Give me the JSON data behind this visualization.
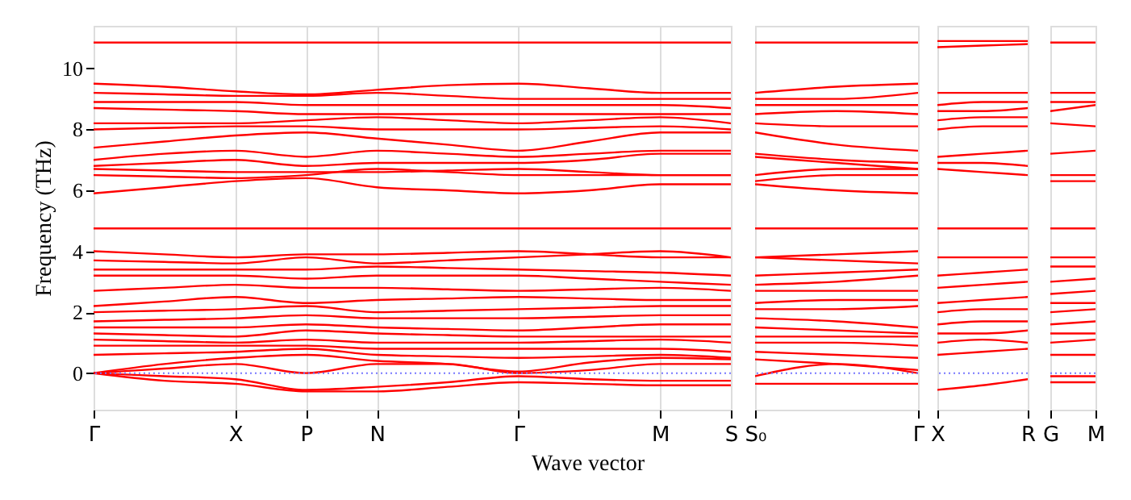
{
  "chart_data": [
    {
      "type": "line",
      "xlabel": "Wave vector",
      "ylabel": "Frequency (THz)",
      "categories": [
        "Γ",
        null,
        "X",
        "P",
        "N",
        null,
        "Γ",
        null,
        "M",
        "S"
      ],
      "ylim": [
        -1.2,
        11.4
      ],
      "yticks": [
        0,
        2,
        4,
        6,
        8,
        10
      ],
      "grid": "x",
      "line_style": "solid",
      "marker": "none",
      "legend": false,
      "ref_lines": [
        {
          "axis": "y",
          "value": 0,
          "color": "#7777ff",
          "line_style": "dotted"
        }
      ],
      "series": [
        {
          "color": "#ff0000",
          "values": [
            10.85,
            10.85,
            10.85,
            10.85,
            10.85,
            10.85,
            10.85,
            10.85,
            10.85,
            10.85
          ]
        },
        {
          "color": "#ff0000",
          "values": [
            9.5,
            9.4,
            9.25,
            9.15,
            9.3,
            9.45,
            9.5,
            9.35,
            9.2,
            9.2
          ]
        },
        {
          "color": "#ff0000",
          "values": [
            9.2,
            9.15,
            9.1,
            9.1,
            9.2,
            9.1,
            9.0,
            9.0,
            9.0,
            9.0
          ]
        },
        {
          "color": "#ff0000",
          "values": [
            8.9,
            8.9,
            8.9,
            8.8,
            8.8,
            8.8,
            8.8,
            8.8,
            8.8,
            8.7
          ]
        },
        {
          "color": "#ff0000",
          "values": [
            8.7,
            8.65,
            8.6,
            8.5,
            8.5,
            8.5,
            8.5,
            8.5,
            8.5,
            8.5
          ]
        },
        {
          "color": "#ff0000",
          "values": [
            8.2,
            8.2,
            8.2,
            8.3,
            8.4,
            8.3,
            8.2,
            8.3,
            8.4,
            8.2
          ]
        },
        {
          "color": "#ff0000",
          "values": [
            8.0,
            8.05,
            8.1,
            8.1,
            8.0,
            8.0,
            8.0,
            8.05,
            8.1,
            8.0
          ]
        },
        {
          "color": "#ff0000",
          "values": [
            7.4,
            7.6,
            7.8,
            7.9,
            7.7,
            7.5,
            7.3,
            7.6,
            7.9,
            7.9
          ]
        },
        {
          "color": "#ff0000",
          "values": [
            7.0,
            7.2,
            7.3,
            7.1,
            7.3,
            7.2,
            7.1,
            7.2,
            7.3,
            7.3
          ]
        },
        {
          "color": "#ff0000",
          "values": [
            6.8,
            6.9,
            7.0,
            6.8,
            6.9,
            6.9,
            6.9,
            7.0,
            7.2,
            7.2
          ]
        },
        {
          "color": "#ff0000",
          "values": [
            6.7,
            6.65,
            6.6,
            6.6,
            6.6,
            6.65,
            6.7,
            6.6,
            6.5,
            6.5
          ]
        },
        {
          "color": "#ff0000",
          "values": [
            6.5,
            6.45,
            6.4,
            6.5,
            6.7,
            6.6,
            6.5,
            6.5,
            6.5,
            6.5
          ]
        },
        {
          "color": "#ff0000",
          "values": [
            5.9,
            6.1,
            6.3,
            6.4,
            6.1,
            6.0,
            5.9,
            6.0,
            6.2,
            6.2
          ]
        },
        {
          "color": "#ff0000",
          "values": [
            4.75,
            4.75,
            4.75,
            4.75,
            4.75,
            4.75,
            4.75,
            4.75,
            4.75,
            4.75
          ]
        },
        {
          "color": "#ff0000",
          "values": [
            4.0,
            3.9,
            3.8,
            3.9,
            3.9,
            3.95,
            4.0,
            3.9,
            3.8,
            3.8
          ]
        },
        {
          "color": "#ff0000",
          "values": [
            3.7,
            3.65,
            3.6,
            3.8,
            3.6,
            3.7,
            3.8,
            3.9,
            4.0,
            3.8
          ]
        },
        {
          "color": "#ff0000",
          "values": [
            3.4,
            3.4,
            3.4,
            3.4,
            3.5,
            3.45,
            3.4,
            3.35,
            3.3,
            3.2
          ]
        },
        {
          "color": "#ff0000",
          "values": [
            3.2,
            3.2,
            3.2,
            3.1,
            3.2,
            3.2,
            3.2,
            3.1,
            3.0,
            2.9
          ]
        },
        {
          "color": "#ff0000",
          "values": [
            2.7,
            2.8,
            2.9,
            2.8,
            2.8,
            2.75,
            2.7,
            2.75,
            2.8,
            2.7
          ]
        },
        {
          "color": "#ff0000",
          "values": [
            2.2,
            2.35,
            2.5,
            2.3,
            2.4,
            2.45,
            2.5,
            2.45,
            2.4,
            2.4
          ]
        },
        {
          "color": "#ff0000",
          "values": [
            2.0,
            2.05,
            2.1,
            2.2,
            2.0,
            2.05,
            2.1,
            2.15,
            2.2,
            2.2
          ]
        },
        {
          "color": "#ff0000",
          "values": [
            1.7,
            1.75,
            1.8,
            1.9,
            1.8,
            1.8,
            1.8,
            1.85,
            1.9,
            1.9
          ]
        },
        {
          "color": "#ff0000",
          "values": [
            1.5,
            1.5,
            1.5,
            1.6,
            1.5,
            1.45,
            1.4,
            1.5,
            1.6,
            1.6
          ]
        },
        {
          "color": "#ff0000",
          "values": [
            1.3,
            1.25,
            1.2,
            1.4,
            1.3,
            1.25,
            1.2,
            1.2,
            1.2,
            1.2
          ]
        },
        {
          "color": "#ff0000",
          "values": [
            1.1,
            1.05,
            1.0,
            1.1,
            1.0,
            1.0,
            1.0,
            1.05,
            1.1,
            1.0
          ]
        },
        {
          "color": "#ff0000",
          "values": [
            0.9,
            0.9,
            0.9,
            0.9,
            0.8,
            0.8,
            0.8,
            0.8,
            0.8,
            0.7
          ]
        },
        {
          "color": "#ff0000",
          "values": [
            0.6,
            0.65,
            0.7,
            0.8,
            0.6,
            0.55,
            0.5,
            0.55,
            0.6,
            0.5
          ]
        },
        {
          "color": "#ff0000",
          "values": [
            0,
            0.3,
            0.5,
            0.6,
            0.4,
            0.3,
            0.05,
            0.35,
            0.5,
            0.45
          ]
        },
        {
          "color": "#ff0000",
          "values": [
            0,
            0.15,
            0.3,
            0.0,
            0.3,
            0.3,
            0.0,
            0.1,
            0.3,
            0.3
          ]
        },
        {
          "color": "#ff0000",
          "values": [
            0,
            -0.1,
            -0.2,
            -0.55,
            -0.45,
            -0.3,
            -0.1,
            -0.2,
            -0.25,
            -0.25
          ]
        },
        {
          "color": "#ff0000",
          "values": [
            0,
            -0.25,
            -0.35,
            -0.6,
            -0.6,
            -0.45,
            -0.3,
            -0.35,
            -0.4,
            -0.4
          ]
        }
      ]
    },
    {
      "type": "line",
      "categories": [
        "S₀",
        null,
        "Γ"
      ],
      "ylim": [
        -1.2,
        11.4
      ],
      "yticks": [
        0,
        2,
        4,
        6,
        8,
        10
      ],
      "tick_labels": "x",
      "line_style": "solid",
      "marker": "none",
      "legend": false,
      "ref_lines": [
        {
          "axis": "y",
          "value": 0,
          "color": "#7777ff",
          "line_style": "dotted"
        }
      ],
      "series": [
        {
          "color": "#ff0000",
          "values": [
            10.85,
            10.85,
            10.85
          ]
        },
        {
          "color": "#ff0000",
          "values": [
            9.2,
            9.4,
            9.5
          ]
        },
        {
          "color": "#ff0000",
          "values": [
            9.0,
            9.0,
            9.2
          ]
        },
        {
          "color": "#ff0000",
          "values": [
            8.8,
            8.8,
            8.8
          ]
        },
        {
          "color": "#ff0000",
          "values": [
            8.5,
            8.6,
            8.5
          ]
        },
        {
          "color": "#ff0000",
          "values": [
            8.2,
            8.1,
            8.1
          ]
        },
        {
          "color": "#ff0000",
          "values": [
            7.9,
            7.5,
            7.3
          ]
        },
        {
          "color": "#ff0000",
          "values": [
            7.2,
            7.0,
            6.9
          ]
        },
        {
          "color": "#ff0000",
          "values": [
            7.1,
            6.9,
            6.7
          ]
        },
        {
          "color": "#ff0000",
          "values": [
            6.5,
            6.7,
            6.7
          ]
        },
        {
          "color": "#ff0000",
          "values": [
            6.3,
            6.5,
            6.5
          ]
        },
        {
          "color": "#ff0000",
          "values": [
            6.2,
            6.0,
            5.9
          ]
        },
        {
          "color": "#ff0000",
          "values": [
            4.75,
            4.75,
            4.75
          ]
        },
        {
          "color": "#ff0000",
          "values": [
            3.8,
            3.9,
            4.0
          ]
        },
        {
          "color": "#ff0000",
          "values": [
            3.8,
            3.7,
            3.6
          ]
        },
        {
          "color": "#ff0000",
          "values": [
            3.2,
            3.3,
            3.4
          ]
        },
        {
          "color": "#ff0000",
          "values": [
            2.9,
            3.0,
            3.2
          ]
        },
        {
          "color": "#ff0000",
          "values": [
            2.7,
            2.7,
            2.7
          ]
        },
        {
          "color": "#ff0000",
          "values": [
            2.3,
            2.4,
            2.4
          ]
        },
        {
          "color": "#ff0000",
          "values": [
            2.1,
            2.1,
            2.2
          ]
        },
        {
          "color": "#ff0000",
          "values": [
            1.8,
            1.7,
            1.5
          ]
        },
        {
          "color": "#ff0000",
          "values": [
            1.5,
            1.4,
            1.3
          ]
        },
        {
          "color": "#ff0000",
          "values": [
            1.2,
            1.2,
            1.2
          ]
        },
        {
          "color": "#ff0000",
          "values": [
            1.0,
            1.0,
            0.9
          ]
        },
        {
          "color": "#ff0000",
          "values": [
            0.7,
            0.6,
            0.5
          ]
        },
        {
          "color": "#ff0000",
          "values": [
            0.45,
            0.3,
            0.1
          ]
        },
        {
          "color": "#ff0000",
          "values": [
            -0.1,
            0.3,
            0.0
          ]
        },
        {
          "color": "#ff0000",
          "values": [
            -0.35,
            -0.35,
            -0.35
          ]
        }
      ]
    },
    {
      "type": "line",
      "categories": [
        "X",
        null,
        "R"
      ],
      "ylim": [
        -1.2,
        11.4
      ],
      "yticks": [
        0,
        2,
        4,
        6,
        8,
        10
      ],
      "tick_labels": "x",
      "line_style": "solid",
      "marker": "none",
      "legend": false,
      "ref_lines": [
        {
          "axis": "y",
          "value": 0,
          "color": "#7777ff",
          "line_style": "dotted"
        }
      ],
      "series": [
        {
          "color": "#ff0000",
          "values": [
            10.9,
            10.9,
            10.9
          ]
        },
        {
          "color": "#ff0000",
          "values": [
            10.7,
            10.75,
            10.8
          ]
        },
        {
          "color": "#ff0000",
          "values": [
            9.2,
            9.2,
            9.2
          ]
        },
        {
          "color": "#ff0000",
          "values": [
            8.8,
            8.9,
            8.9
          ]
        },
        {
          "color": "#ff0000",
          "values": [
            8.6,
            8.6,
            8.7
          ]
        },
        {
          "color": "#ff0000",
          "values": [
            8.3,
            8.4,
            8.4
          ]
        },
        {
          "color": "#ff0000",
          "values": [
            8.0,
            8.1,
            8.1
          ]
        },
        {
          "color": "#ff0000",
          "values": [
            7.1,
            7.2,
            7.3
          ]
        },
        {
          "color": "#ff0000",
          "values": [
            6.9,
            6.9,
            6.8
          ]
        },
        {
          "color": "#ff0000",
          "values": [
            6.7,
            6.6,
            6.5
          ]
        },
        {
          "color": "#ff0000",
          "values": [
            4.75,
            4.75,
            4.75
          ]
        },
        {
          "color": "#ff0000",
          "values": [
            3.8,
            3.8,
            3.8
          ]
        },
        {
          "color": "#ff0000",
          "values": [
            3.2,
            3.3,
            3.4
          ]
        },
        {
          "color": "#ff0000",
          "values": [
            2.8,
            2.9,
            3.0
          ]
        },
        {
          "color": "#ff0000",
          "values": [
            2.3,
            2.4,
            2.5
          ]
        },
        {
          "color": "#ff0000",
          "values": [
            2.0,
            2.1,
            2.1
          ]
        },
        {
          "color": "#ff0000",
          "values": [
            1.6,
            1.7,
            1.7
          ]
        },
        {
          "color": "#ff0000",
          "values": [
            1.3,
            1.3,
            1.4
          ]
        },
        {
          "color": "#ff0000",
          "values": [
            1.0,
            1.1,
            1.0
          ]
        },
        {
          "color": "#ff0000",
          "values": [
            0.6,
            0.7,
            0.8
          ]
        },
        {
          "color": "#ff0000",
          "values": [
            -0.55,
            -0.4,
            -0.2
          ]
        }
      ]
    },
    {
      "type": "line",
      "categories": [
        "G",
        "M"
      ],
      "ylim": [
        -1.2,
        11.4
      ],
      "yticks": [
        0,
        2,
        4,
        6,
        8,
        10
      ],
      "tick_labels": "x",
      "line_style": "solid",
      "marker": "none",
      "legend": false,
      "ref_lines": [
        {
          "axis": "y",
          "value": 0,
          "color": "#7777ff",
          "line_style": "dotted"
        }
      ],
      "series": [
        {
          "color": "#ff0000",
          "values": [
            10.85,
            10.85
          ]
        },
        {
          "color": "#ff0000",
          "values": [
            9.2,
            9.2
          ]
        },
        {
          "color": "#ff0000",
          "values": [
            8.9,
            8.9
          ]
        },
        {
          "color": "#ff0000",
          "values": [
            8.6,
            8.8
          ]
        },
        {
          "color": "#ff0000",
          "values": [
            8.2,
            8.1
          ]
        },
        {
          "color": "#ff0000",
          "values": [
            7.2,
            7.3
          ]
        },
        {
          "color": "#ff0000",
          "values": [
            6.5,
            6.5
          ]
        },
        {
          "color": "#ff0000",
          "values": [
            6.3,
            6.3
          ]
        },
        {
          "color": "#ff0000",
          "values": [
            4.75,
            4.75
          ]
        },
        {
          "color": "#ff0000",
          "values": [
            3.8,
            3.8
          ]
        },
        {
          "color": "#ff0000",
          "values": [
            3.5,
            3.5
          ]
        },
        {
          "color": "#ff0000",
          "values": [
            3.0,
            3.1
          ]
        },
        {
          "color": "#ff0000",
          "values": [
            2.6,
            2.7
          ]
        },
        {
          "color": "#ff0000",
          "values": [
            2.3,
            2.3
          ]
        },
        {
          "color": "#ff0000",
          "values": [
            2.0,
            2.1
          ]
        },
        {
          "color": "#ff0000",
          "values": [
            1.6,
            1.7
          ]
        },
        {
          "color": "#ff0000",
          "values": [
            1.3,
            1.3
          ]
        },
        {
          "color": "#ff0000",
          "values": [
            1.0,
            1.1
          ]
        },
        {
          "color": "#ff0000",
          "values": [
            0.6,
            0.6
          ]
        },
        {
          "color": "#ff0000",
          "values": [
            -0.1,
            -0.1
          ]
        },
        {
          "color": "#ff0000",
          "values": [
            -0.3,
            -0.3
          ]
        }
      ]
    }
  ]
}
